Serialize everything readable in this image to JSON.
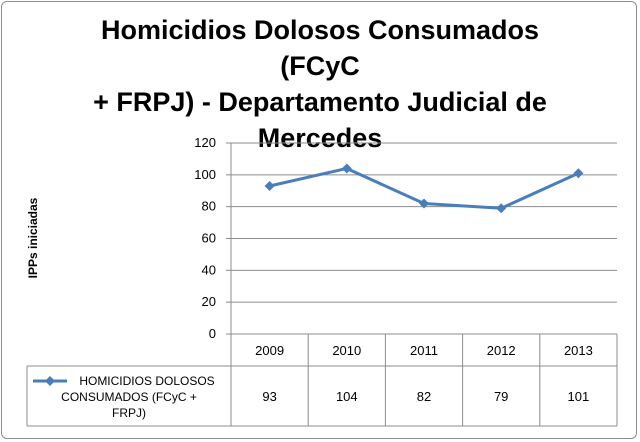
{
  "chart_data": {
    "type": "line",
    "title_lines": [
      "Homicidios Dolosos Consumados (FCyC",
      "+ FRPJ) - Departamento Judicial de",
      "Mercedes"
    ],
    "ylabel": "IPPs iniciadas",
    "xlabel": "",
    "categories": [
      "2009",
      "2010",
      "2011",
      "2012",
      "2013"
    ],
    "ylim": [
      0,
      120
    ],
    "yticks": [
      0,
      20,
      40,
      60,
      80,
      100,
      120
    ],
    "grid": true,
    "legend_placement": "data-table",
    "series": [
      {
        "name": "HOMICIDIOS DOLOSOS CONSUMADOS (FCyC + FRPJ)",
        "name_lines": [
          "HOMICIDIOS DOLOSOS",
          "CONSUMADOS (FCyC +",
          "FRPJ)"
        ],
        "values": [
          93,
          104,
          82,
          79,
          101
        ],
        "color": "#4a7ebb"
      }
    ],
    "data_table": true
  }
}
